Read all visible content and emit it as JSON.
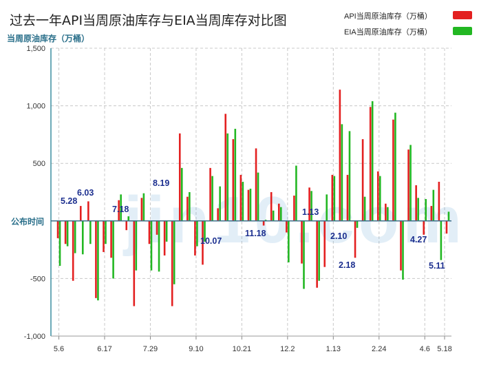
{
  "chart_data": {
    "type": "bar",
    "title": "过去一年API当周原油库存与EIA当周库存对比图",
    "ylabel": "当周原油库存（万桶）",
    "xlabel": "公布时间",
    "ylim": [
      -1000,
      1500
    ],
    "yticks": [
      "1,500",
      "1,000",
      "500",
      "-500",
      "-1,000"
    ],
    "ytick_values": [
      1500,
      1000,
      500,
      -500,
      -1000
    ],
    "x_tick_labels": [
      "5.6",
      "6.17",
      "7.29",
      "9.10",
      "10.21",
      "12.2",
      "1.13",
      "2.24",
      "4.6",
      "5.18"
    ],
    "grid": true,
    "legend_position": "top-right",
    "watermark": "jin10.com 金十数据",
    "annotations": [
      "5.28",
      "6.03",
      "7.18",
      "8.19",
      "10.07",
      "11.18",
      "1.13",
      "2.10",
      "2.18",
      "4.27",
      "5.11"
    ],
    "series": [
      {
        "name": "API当周原油库存（万桶）",
        "color": "#e32020",
        "values": [
          -150,
          -200,
          -520,
          130,
          170,
          -670,
          -270,
          -320,
          180,
          -80,
          -740,
          200,
          -200,
          -120,
          -300,
          -740,
          760,
          210,
          -300,
          -380,
          460,
          110,
          930,
          710,
          400,
          270,
          630,
          -40,
          250,
          150,
          -100,
          220,
          -370,
          290,
          -580,
          -400,
          400,
          1140,
          400,
          -320,
          710,
          990,
          430,
          150,
          880,
          -430,
          620,
          310,
          -120,
          130,
          340,
          -110
        ],
        "dates": [
          "5.6",
          "5.13",
          "5.20",
          "5.27",
          "6.3",
          "6.10",
          "6.17",
          "6.24",
          "7.1",
          "7.8",
          "7.15",
          "7.22",
          "7.29",
          "8.5",
          "8.12",
          "8.19",
          "8.26",
          "9.2",
          "9.10",
          "9.16",
          "9.23",
          "9.30",
          "10.7",
          "10.14",
          "10.21",
          "10.28",
          "11.4",
          "11.11",
          "11.18",
          "11.25",
          "12.2",
          "12.9",
          "12.16",
          "12.23",
          "12.30",
          "1.6",
          "1.13",
          "1.20",
          "1.27",
          "2.3",
          "2.10",
          "2.17",
          "2.24",
          "3.3",
          "3.10",
          "3.17",
          "3.24",
          "3.31",
          "4.6",
          "4.13",
          "4.20",
          "4.27"
        ]
      },
      {
        "name": "EIA当周原油库存（万桶）",
        "color": "#22b722",
        "values": [
          -390,
          -220,
          -280,
          -290,
          -200,
          -690,
          -200,
          -500,
          230,
          40,
          -430,
          240,
          -430,
          -440,
          -180,
          -550,
          460,
          250,
          -220,
          -180,
          390,
          300,
          760,
          800,
          340,
          280,
          420,
          10,
          90,
          120,
          -360,
          480,
          -590,
          260,
          -520,
          230,
          390,
          840,
          780,
          -60,
          210,
          1040,
          390,
          120,
          940,
          -510,
          660,
          200,
          190,
          270,
          -340,
          80
        ],
        "dates": [
          "5.6",
          "5.13",
          "5.20",
          "5.27",
          "6.3",
          "6.10",
          "6.17",
          "6.24",
          "7.1",
          "7.8",
          "7.15",
          "7.22",
          "7.29",
          "8.5",
          "8.12",
          "8.19",
          "8.26",
          "9.2",
          "9.10",
          "9.16",
          "9.23",
          "9.30",
          "10.7",
          "10.14",
          "10.21",
          "10.28",
          "11.4",
          "11.11",
          "11.18",
          "11.25",
          "12.2",
          "12.9",
          "12.16",
          "12.23",
          "12.30",
          "1.6",
          "1.13",
          "1.20",
          "1.27",
          "2.3",
          "2.10",
          "2.17",
          "2.24",
          "3.3",
          "3.10",
          "3.17",
          "3.24",
          "3.31",
          "4.6",
          "4.13",
          "4.20",
          "4.27"
        ]
      }
    ]
  }
}
